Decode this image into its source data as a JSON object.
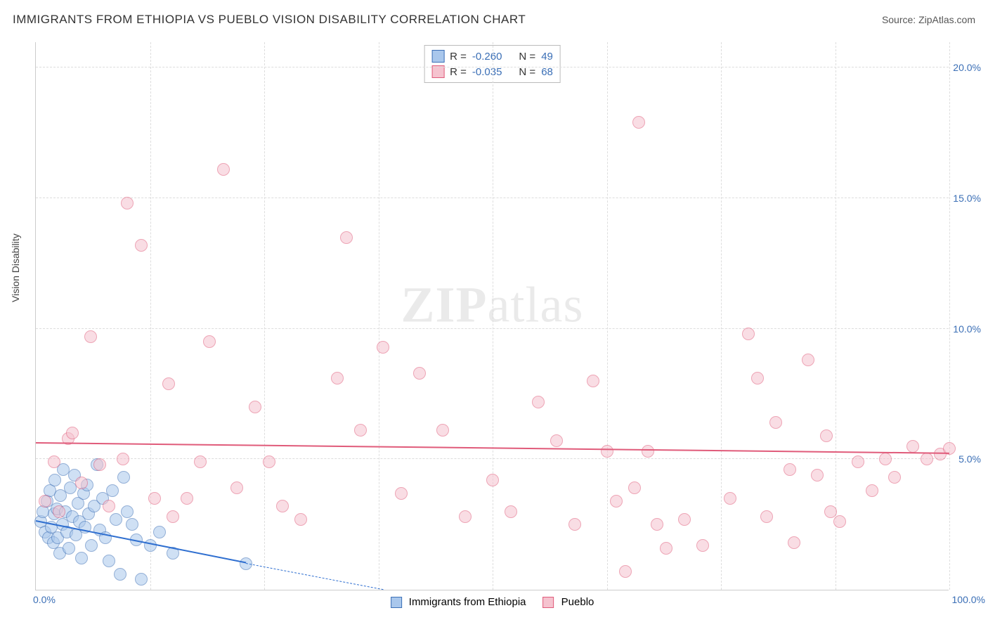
{
  "title": "IMMIGRANTS FROM ETHIOPIA VS PUEBLO VISION DISABILITY CORRELATION CHART",
  "source_label": "Source: ZipAtlas.com",
  "watermark": {
    "part1": "ZIP",
    "part2": "atlas"
  },
  "y_axis_label": "Vision Disability",
  "chart": {
    "type": "scatter",
    "background_color": "#ffffff",
    "grid_color": "#dddddd",
    "border_color": "#cccccc",
    "xlim": [
      0,
      100
    ],
    "ylim": [
      0,
      21
    ],
    "y_ticks": [
      5.0,
      10.0,
      15.0,
      20.0
    ],
    "y_tick_labels": [
      "5.0%",
      "10.0%",
      "15.0%",
      "20.0%"
    ],
    "x_ticks": [
      0,
      12.5,
      25,
      37.5,
      50,
      62.5,
      75,
      87.5,
      100
    ],
    "x_tick_labels_shown": {
      "0": "0.0%",
      "100": "100.0%"
    },
    "tick_label_color": "#3b6fb6",
    "tick_fontsize": 14,
    "axis_label_fontsize": 14,
    "axis_label_color": "#444444",
    "point_radius": 9,
    "point_opacity": 0.55,
    "series": [
      {
        "name": "Immigrants from Ethiopia",
        "color_fill": "#a9c7ec",
        "color_stroke": "#3b6fb6",
        "R": "-0.260",
        "N": "49",
        "trend": {
          "x1": 0,
          "y1": 2.6,
          "x2": 23,
          "y2": 1.0,
          "solid_until_x": 23,
          "dash_to_x": 38,
          "dash_to_y": 0.0,
          "width": 2.5,
          "color": "#2f6fd0"
        },
        "points": [
          [
            0.5,
            2.6
          ],
          [
            0.8,
            3.0
          ],
          [
            1.0,
            2.2
          ],
          [
            1.2,
            3.4
          ],
          [
            1.4,
            2.0
          ],
          [
            1.5,
            3.8
          ],
          [
            1.7,
            2.4
          ],
          [
            1.9,
            1.8
          ],
          [
            2.0,
            2.9
          ],
          [
            2.1,
            4.2
          ],
          [
            2.3,
            3.1
          ],
          [
            2.4,
            2.0
          ],
          [
            2.6,
            1.4
          ],
          [
            2.7,
            3.6
          ],
          [
            2.9,
            2.5
          ],
          [
            3.0,
            4.6
          ],
          [
            3.2,
            3.0
          ],
          [
            3.4,
            2.2
          ],
          [
            3.6,
            1.6
          ],
          [
            3.8,
            3.9
          ],
          [
            4.0,
            2.8
          ],
          [
            4.2,
            4.4
          ],
          [
            4.4,
            2.1
          ],
          [
            4.6,
            3.3
          ],
          [
            4.8,
            2.6
          ],
          [
            5.0,
            1.2
          ],
          [
            5.2,
            3.7
          ],
          [
            5.4,
            2.4
          ],
          [
            5.6,
            4.0
          ],
          [
            5.8,
            2.9
          ],
          [
            6.1,
            1.7
          ],
          [
            6.4,
            3.2
          ],
          [
            6.7,
            4.8
          ],
          [
            7.0,
            2.3
          ],
          [
            7.3,
            3.5
          ],
          [
            7.6,
            2.0
          ],
          [
            8.0,
            1.1
          ],
          [
            8.4,
            3.8
          ],
          [
            8.8,
            2.7
          ],
          [
            9.2,
            0.6
          ],
          [
            9.6,
            4.3
          ],
          [
            10.0,
            3.0
          ],
          [
            10.5,
            2.5
          ],
          [
            11.0,
            1.9
          ],
          [
            11.5,
            0.4
          ],
          [
            12.5,
            1.7
          ],
          [
            13.5,
            2.2
          ],
          [
            15.0,
            1.4
          ],
          [
            23.0,
            1.0
          ]
        ]
      },
      {
        "name": "Pueblo",
        "color_fill": "#f5c3cf",
        "color_stroke": "#e05b7a",
        "R": "-0.035",
        "N": "68",
        "trend": {
          "x1": 0,
          "y1": 5.6,
          "x2": 100,
          "y2": 5.2,
          "width": 2,
          "color": "#e05b7a"
        },
        "points": [
          [
            1.0,
            3.4
          ],
          [
            2.0,
            4.9
          ],
          [
            2.5,
            3.0
          ],
          [
            3.5,
            5.8
          ],
          [
            4.0,
            6.0
          ],
          [
            5.0,
            4.1
          ],
          [
            6.0,
            9.7
          ],
          [
            7.0,
            4.8
          ],
          [
            8.0,
            3.2
          ],
          [
            9.5,
            5.0
          ],
          [
            10.0,
            14.8
          ],
          [
            11.5,
            13.2
          ],
          [
            13.0,
            3.5
          ],
          [
            14.5,
            7.9
          ],
          [
            15.0,
            2.8
          ],
          [
            16.5,
            3.5
          ],
          [
            18.0,
            4.9
          ],
          [
            19.0,
            9.5
          ],
          [
            20.5,
            16.1
          ],
          [
            22.0,
            3.9
          ],
          [
            24.0,
            7.0
          ],
          [
            25.5,
            4.9
          ],
          [
            27.0,
            3.2
          ],
          [
            29.0,
            2.7
          ],
          [
            33.0,
            8.1
          ],
          [
            34.0,
            13.5
          ],
          [
            35.5,
            6.1
          ],
          [
            38.0,
            9.3
          ],
          [
            40.0,
            3.7
          ],
          [
            42.0,
            8.3
          ],
          [
            44.5,
            6.1
          ],
          [
            47.0,
            2.8
          ],
          [
            50.0,
            4.2
          ],
          [
            52.0,
            3.0
          ],
          [
            55.0,
            7.2
          ],
          [
            57.0,
            5.7
          ],
          [
            59.0,
            2.5
          ],
          [
            61.0,
            8.0
          ],
          [
            62.5,
            5.3
          ],
          [
            63.5,
            3.4
          ],
          [
            64.5,
            0.7
          ],
          [
            65.5,
            3.9
          ],
          [
            66.0,
            17.9
          ],
          [
            67.0,
            5.3
          ],
          [
            68.0,
            2.5
          ],
          [
            69.0,
            1.6
          ],
          [
            71.0,
            2.7
          ],
          [
            73.0,
            1.7
          ],
          [
            76.0,
            3.5
          ],
          [
            78.0,
            9.8
          ],
          [
            79.0,
            8.1
          ],
          [
            80.0,
            2.8
          ],
          [
            81.0,
            6.4
          ],
          [
            82.5,
            4.6
          ],
          [
            83.0,
            1.8
          ],
          [
            84.5,
            8.8
          ],
          [
            85.5,
            4.4
          ],
          [
            86.5,
            5.9
          ],
          [
            87.0,
            3.0
          ],
          [
            88.0,
            2.6
          ],
          [
            90.0,
            4.9
          ],
          [
            91.5,
            3.8
          ],
          [
            93.0,
            5.0
          ],
          [
            94.0,
            4.3
          ],
          [
            96.0,
            5.5
          ],
          [
            97.5,
            5.0
          ],
          [
            99.0,
            5.2
          ],
          [
            100.0,
            5.4
          ]
        ]
      }
    ]
  },
  "legend": {
    "r_label": "R =",
    "n_label": "N ="
  },
  "bottom_legend": {
    "items": [
      "Immigrants from Ethiopia",
      "Pueblo"
    ]
  }
}
